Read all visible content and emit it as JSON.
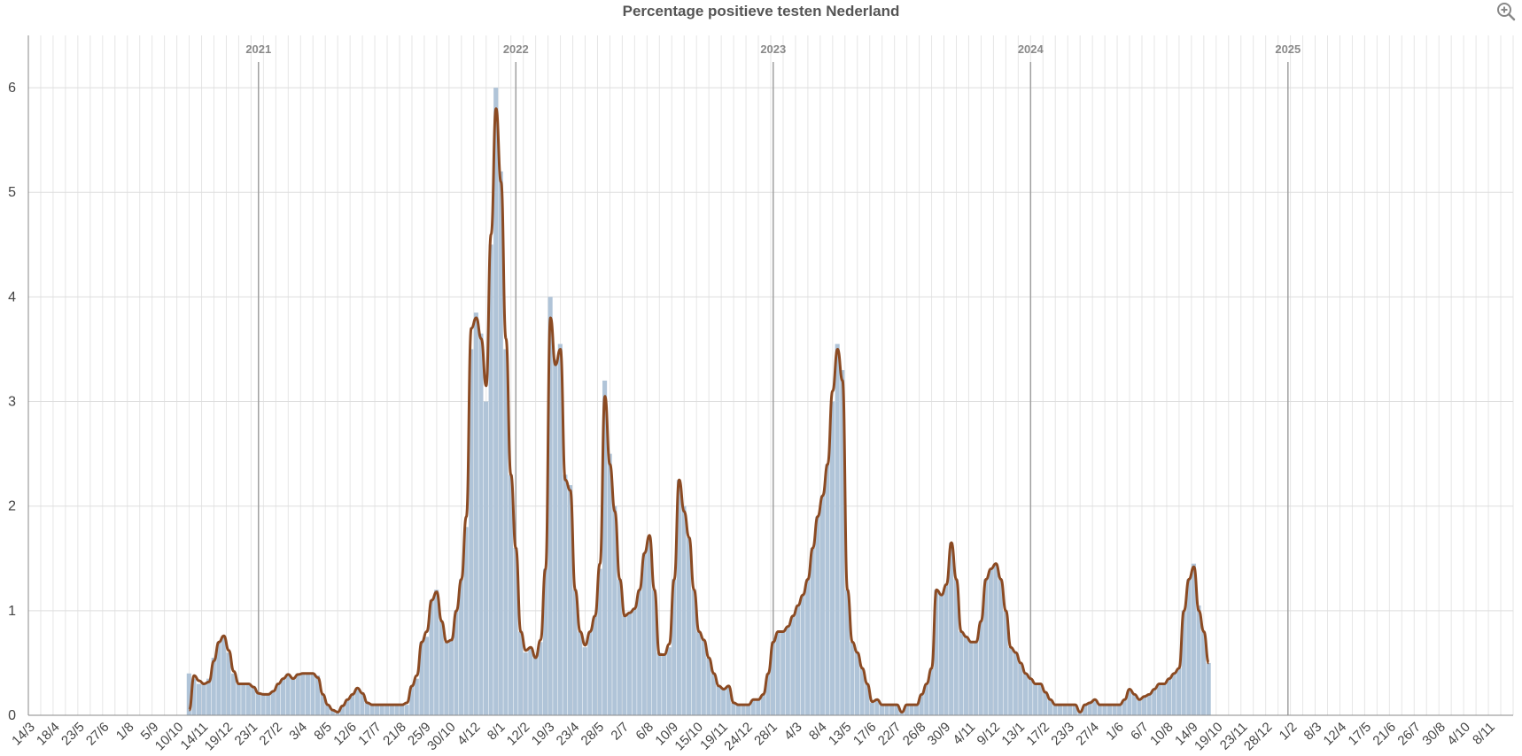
{
  "chart_data": {
    "type": "bar",
    "title": "Percentage positieve testen Nederland",
    "ylim": [
      0,
      6.5
    ],
    "yticks": [
      0,
      1,
      2,
      3,
      4,
      5,
      6
    ],
    "grid": true,
    "legend": "none",
    "colors": {
      "bars": "#b0c4d8",
      "line": "#8b4a22",
      "grid": "#dddddd",
      "year_line": "#a0a0a0",
      "axis": "#888888"
    },
    "x_tick_labels": [
      "14/3",
      "18/4",
      "23/5",
      "27/6",
      "1/8",
      "5/9",
      "10/10",
      "14/11",
      "19/12",
      "23/1",
      "27/2",
      "3/4",
      "8/5",
      "12/6",
      "17/7",
      "21/8",
      "25/9",
      "30/10",
      "4/12",
      "8/1",
      "12/2",
      "19/3",
      "23/4",
      "28/5",
      "2/7",
      "6/8",
      "10/9",
      "15/10",
      "19/11",
      "24/12",
      "28/1",
      "4/3",
      "8/4",
      "13/5",
      "17/6",
      "22/7",
      "26/8",
      "30/9",
      "4/11",
      "9/12",
      "13/1",
      "17/2",
      "23/3",
      "27/4",
      "1/6",
      "6/7",
      "10/8",
      "14/9",
      "19/10",
      "23/11",
      "28/12",
      "1/2",
      "8/3",
      "12/4",
      "17/5",
      "21/6",
      "26/7",
      "30/8",
      "4/10",
      "8/11"
    ],
    "year_markers": [
      "2021",
      "2022",
      "2023",
      "2024",
      "2025"
    ],
    "series": [
      {
        "kind": "weekly_bars",
        "x_start_week": 32,
        "values": [
          0.4,
          0.35,
          0.3,
          0.3,
          0.35,
          0.55,
          0.7,
          0.75,
          0.6,
          0.4,
          0.3,
          0.3,
          0.3,
          0.28,
          0.22,
          0.2,
          0.2,
          0.22,
          0.3,
          0.35,
          0.4,
          0.35,
          0.4,
          0.4,
          0.4,
          0.4,
          0.38,
          0.2,
          0.1,
          0.05,
          0.02,
          0.08,
          0.15,
          0.2,
          0.25,
          0.22,
          0.12,
          0.1,
          0.1,
          0.1,
          0.1,
          0.1,
          0.1,
          0.1,
          0.1,
          0.28,
          0.35,
          0.7,
          0.75,
          1.1,
          1.2,
          0.9,
          0.7,
          0.72,
          1.0,
          1.3,
          1.8,
          3.5,
          3.85,
          3.65,
          3.0,
          4.5,
          6.0,
          5.2,
          3.5,
          2.3,
          1.6,
          0.8,
          0.6,
          0.65,
          0.55,
          0.7,
          1.4,
          4.0,
          3.4,
          3.55,
          2.3,
          2.2,
          1.2,
          0.8,
          0.65,
          0.8,
          0.95,
          1.4,
          3.2,
          2.5,
          2.0,
          1.3,
          0.95,
          0.98,
          1.02,
          1.2,
          1.55,
          1.7,
          1.2,
          0.6,
          0.58,
          0.65,
          1.3,
          2.25,
          2.0,
          1.7,
          1.2,
          0.8,
          0.72,
          0.55,
          0.4,
          0.28,
          0.25,
          0.28,
          0.12,
          0.1,
          0.1,
          0.1,
          0.15,
          0.15,
          0.2,
          0.4,
          0.7,
          0.8,
          0.8,
          0.85,
          0.95,
          1.05,
          1.15,
          1.3,
          1.6,
          1.9,
          2.1,
          2.4,
          3.0,
          3.55,
          3.3,
          1.2,
          0.7,
          0.6,
          0.45,
          0.3,
          0.12,
          0.15,
          0.1,
          0.1,
          0.1,
          0.1,
          0.03,
          0.1,
          0.1,
          0.1,
          0.2,
          0.3,
          0.45,
          1.2,
          1.15,
          1.25,
          1.65,
          1.3,
          0.8,
          0.75,
          0.7,
          0.7,
          0.9,
          1.3,
          1.4,
          1.45,
          1.3,
          1.0,
          0.65,
          0.6,
          0.5,
          0.4,
          0.35,
          0.3,
          0.3,
          0.22,
          0.15,
          0.1,
          0.1,
          0.1,
          0.1,
          0.1,
          0.03,
          0.1,
          0.12,
          0.15,
          0.1,
          0.1,
          0.1,
          0.1,
          0.1,
          0.15,
          0.25,
          0.2,
          0.15,
          0.18,
          0.2,
          0.25,
          0.3,
          0.3,
          0.35,
          0.4,
          0.45,
          1.0,
          1.3,
          1.45,
          1.05,
          0.8,
          0.5
        ]
      },
      {
        "kind": "smoothed_line",
        "x_start_week": 32,
        "values": [
          0.05,
          0.38,
          0.33,
          0.3,
          0.32,
          0.52,
          0.7,
          0.76,
          0.62,
          0.42,
          0.3,
          0.3,
          0.3,
          0.27,
          0.21,
          0.2,
          0.2,
          0.23,
          0.3,
          0.35,
          0.39,
          0.35,
          0.39,
          0.4,
          0.4,
          0.4,
          0.36,
          0.2,
          0.1,
          0.05,
          0.03,
          0.09,
          0.15,
          0.2,
          0.26,
          0.21,
          0.12,
          0.1,
          0.1,
          0.1,
          0.1,
          0.1,
          0.1,
          0.1,
          0.12,
          0.28,
          0.38,
          0.7,
          0.8,
          1.1,
          1.18,
          0.9,
          0.7,
          0.72,
          1.0,
          1.3,
          1.9,
          3.7,
          3.8,
          3.6,
          3.15,
          4.6,
          5.8,
          5.1,
          3.6,
          2.3,
          1.6,
          0.8,
          0.62,
          0.65,
          0.55,
          0.72,
          1.4,
          3.8,
          3.35,
          3.5,
          2.25,
          2.15,
          1.2,
          0.8,
          0.67,
          0.8,
          0.95,
          1.45,
          3.05,
          2.4,
          1.95,
          1.3,
          0.95,
          0.98,
          1.02,
          1.2,
          1.55,
          1.72,
          1.2,
          0.58,
          0.58,
          0.68,
          1.3,
          2.25,
          1.95,
          1.7,
          1.2,
          0.8,
          0.72,
          0.55,
          0.4,
          0.28,
          0.25,
          0.28,
          0.12,
          0.1,
          0.1,
          0.1,
          0.15,
          0.15,
          0.2,
          0.4,
          0.7,
          0.8,
          0.8,
          0.85,
          0.95,
          1.05,
          1.15,
          1.3,
          1.6,
          1.9,
          2.1,
          2.4,
          3.1,
          3.5,
          3.2,
          1.2,
          0.7,
          0.6,
          0.45,
          0.3,
          0.13,
          0.15,
          0.1,
          0.1,
          0.1,
          0.1,
          0.03,
          0.1,
          0.1,
          0.1,
          0.2,
          0.3,
          0.45,
          1.2,
          1.15,
          1.25,
          1.65,
          1.3,
          0.8,
          0.75,
          0.7,
          0.7,
          0.9,
          1.3,
          1.4,
          1.45,
          1.3,
          1.0,
          0.65,
          0.6,
          0.5,
          0.4,
          0.35,
          0.3,
          0.3,
          0.22,
          0.15,
          0.1,
          0.1,
          0.1,
          0.1,
          0.1,
          0.03,
          0.1,
          0.12,
          0.15,
          0.1,
          0.1,
          0.1,
          0.1,
          0.1,
          0.15,
          0.25,
          0.2,
          0.15,
          0.18,
          0.2,
          0.25,
          0.3,
          0.3,
          0.35,
          0.4,
          0.45,
          1.0,
          1.3,
          1.42,
          1.0,
          0.8,
          0.5
        ]
      }
    ]
  },
  "ui": {
    "zoom_icon": "zoom-in-icon"
  }
}
